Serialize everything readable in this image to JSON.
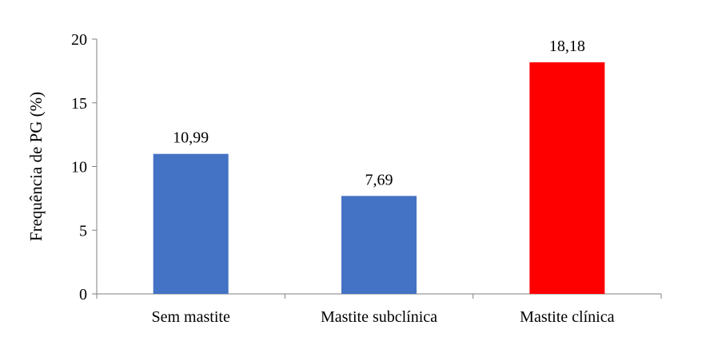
{
  "chart_data": {
    "type": "bar",
    "categories": [
      "Sem mastite",
      "Mastite subclínica",
      "Mastite clínica"
    ],
    "values": [
      10.99,
      7.69,
      18.18
    ],
    "data_labels": [
      "10,99",
      "7,69",
      "18,18"
    ],
    "bar_colors": [
      "#4472C4",
      "#4472C4",
      "#FF0000"
    ],
    "title": "",
    "xlabel": "",
    "ylabel": "Frequência de PG (%)",
    "ylim": [
      0,
      20
    ],
    "yticks": [
      0,
      5,
      10,
      15,
      20
    ],
    "ytick_labels": [
      "0",
      "5",
      "10",
      "15",
      "20"
    ],
    "grid": false,
    "legend": "none"
  }
}
